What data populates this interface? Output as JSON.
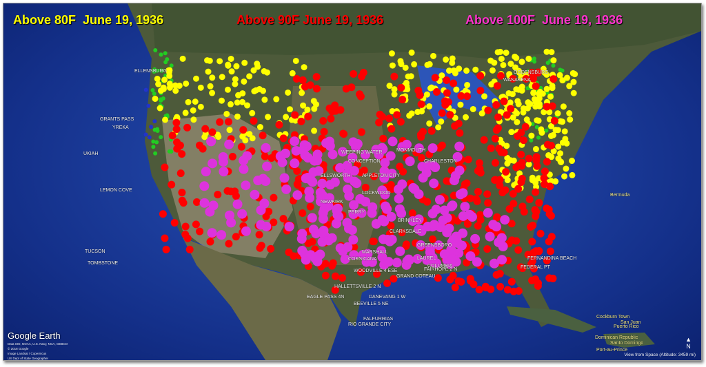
{
  "titles": [
    {
      "text": "Above 80F  June 19, 1936",
      "color": "#ffff00"
    },
    {
      "text": "Above 90F June 19, 1936",
      "color": "#ff0000"
    },
    {
      "text": "Above 100F  June 19, 1936",
      "color": "#ff33cc"
    }
  ],
  "legend_colors": {
    "above_80": "#ffff00",
    "above_90": "#ff0000",
    "above_100": "#dd33dd",
    "below_80": "#22cc22",
    "other": "#2233cc"
  },
  "places": [
    "ELLENSBURG",
    "GRANTS PASS",
    "YREKA",
    "UKIAH",
    "LEMON COVE",
    "TUCSON",
    "TOMBSTONE",
    "WEEPING WATER",
    "CONCEPTION",
    "ELLSWORTH",
    "APPLETON CITY",
    "LOCKWOOD",
    "NEWKIRK",
    "PERRY",
    "BRINKLEY",
    "CLARKSDALE",
    "GREENSBORO",
    "CORSICANA",
    "MARSHALL",
    "WOODVILLE 4 ESE",
    "GRAND COTEAU",
    "FAIRHOPE 2 N",
    "HALLETTSVILLE 2 N",
    "DANEVANG 1 W",
    "BEEVILLE 5 NE",
    "FALFURRIAS",
    "RIO GRANDE CITY",
    "EAGLE PASS 4N",
    "FERNANDINA BEACH",
    "FEDERAL PT",
    "OGDENSBURG",
    "WANAKENA",
    "MONMOUTH",
    "CHARLESTON",
    "LAUREL",
    "COLUMBIA",
    "Bermuda",
    "Dominican Republic",
    "Santo Domingo",
    "Port-au-Prince",
    "San Juan",
    "Puerto Rico",
    "Cockburn Town"
  ],
  "footer": {
    "logo": "Google Earth",
    "credits": [
      "Data SIO, NOAA, U.S. Navy, NGA, GEBCO",
      "© 2018 Google",
      "Image Landsat / Copernicus",
      "US Dept of State Geographer"
    ],
    "view": "View from Space (Altitude: 3459 mi)",
    "compass": "N"
  }
}
